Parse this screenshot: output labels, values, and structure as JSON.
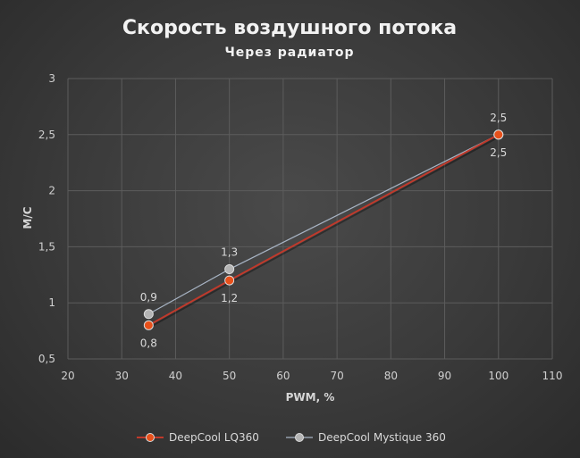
{
  "chart_data": {
    "type": "line",
    "title": "Скорость воздушного потока",
    "subtitle": "Через радиатор",
    "xlabel": "PWM, %",
    "ylabel": "М/С",
    "xlim": [
      20,
      110
    ],
    "ylim": [
      0.5,
      3
    ],
    "x_ticks": [
      20,
      30,
      40,
      50,
      60,
      70,
      80,
      90,
      100,
      110
    ],
    "x_tick_labels": [
      "20",
      "30",
      "40",
      "50",
      "60",
      "70",
      "80",
      "90",
      "100",
      "110"
    ],
    "y_ticks": [
      0.5,
      1,
      1.5,
      2,
      2.5,
      3
    ],
    "y_tick_labels": [
      "0,5",
      "1",
      "1,5",
      "2",
      "2,5",
      "3"
    ],
    "grid": true,
    "legend_position": "bottom",
    "series": [
      {
        "name": "DeepCool LQ360",
        "color": "#c0392b",
        "marker_color": "#e8501a",
        "x": [
          35,
          50,
          100
        ],
        "y": [
          0.8,
          1.2,
          2.5
        ],
        "labels": [
          "0,8",
          "1,2",
          "2,5"
        ],
        "label_position": "below"
      },
      {
        "name": "DeepCool Mystique 360",
        "color": "#a8b4c4",
        "marker_color": "#b4b4b4",
        "x": [
          35,
          50,
          100
        ],
        "y": [
          0.9,
          1.3,
          2.5
        ],
        "labels": [
          "0,9",
          "1,3",
          "2,5"
        ],
        "label_position": "above"
      }
    ]
  }
}
